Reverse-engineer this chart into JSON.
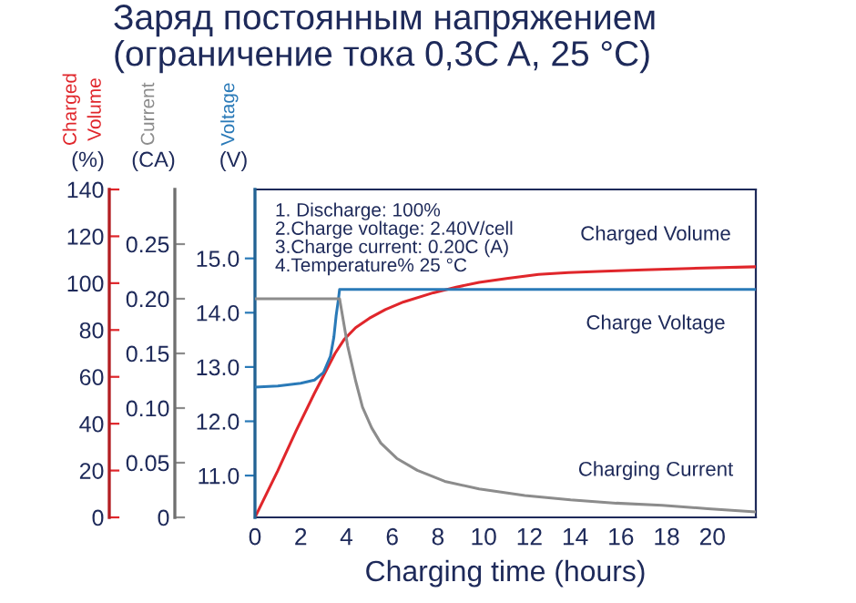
{
  "chart_data": {
    "type": "line",
    "title": "Заряд постоянным напряжением",
    "subtitle": "(ограничение тока 0,3C A, 25 °C)",
    "xlabel": "Charging time (hours)",
    "ylabel": "Charged Volume (%)",
    "y2label": "Current (CA)",
    "y3label": "Voltage (V)",
    "annotations": [
      "1. Discharge: 100%",
      "2.Charge voltage: 2.40V/cell",
      "3.Charge current: 0.20C (A)",
      "4.Temperature% 25 °C"
    ],
    "xlim": [
      0,
      21.9
    ],
    "xticks": [
      0,
      2,
      4,
      6,
      8,
      10,
      12,
      14,
      16,
      18,
      20
    ],
    "ylim": [
      0,
      140
    ],
    "yticks": [
      0,
      20,
      40,
      60,
      80,
      100,
      120,
      140
    ],
    "y2lim": [
      0,
      0.3
    ],
    "y2ticks": [
      0,
      {
        "value": 0.05,
        "label": "0.05"
      },
      {
        "value": 0.1,
        "label": "0.10"
      },
      {
        "value": 0.15,
        "label": "0.15"
      },
      {
        "value": 0.2,
        "label": "0.20"
      },
      {
        "value": 0.25,
        "label": "0.25"
      }
    ],
    "y3lim": [
      10.23,
      16.27
    ],
    "y3ticks": [
      {
        "value": 11,
        "label": "11.0"
      },
      {
        "value": 12,
        "label": "12.0"
      },
      {
        "value": 13,
        "label": "13.0"
      },
      {
        "value": 14,
        "label": "14.0"
      },
      {
        "value": 15,
        "label": "15.0"
      }
    ],
    "grid": false,
    "legend": false,
    "marker": "none",
    "line_style": "solid",
    "series": [
      {
        "name": "Charged Volume",
        "color": "#e0262b",
        "axis": "y",
        "x": [
          0,
          1,
          1.8,
          2.6,
          3.5,
          3.9,
          4.4,
          5,
          5.7,
          6.5,
          7.8,
          8.8,
          9.8,
          11,
          12.4,
          13.7,
          15,
          17,
          19,
          21.9
        ],
        "values": [
          0,
          20,
          37,
          53,
          70,
          76,
          81,
          85,
          88.7,
          92,
          95.9,
          98.3,
          100.3,
          102,
          103.7,
          104.5,
          105,
          105.7,
          106.3,
          107
        ]
      },
      {
        "name": "Charge Voltage",
        "color": "#2a7ab8",
        "axis": "y3",
        "x": [
          0,
          1,
          2,
          2.6,
          3,
          3.3,
          3.45,
          3.55,
          3.65,
          3.7,
          21.9
        ],
        "values": [
          12.63,
          12.65,
          12.7,
          12.76,
          12.9,
          13.2,
          13.55,
          13.95,
          14.25,
          14.43,
          14.43
        ]
      },
      {
        "name": "Charging Current",
        "color": "#8c8c8c",
        "axis": "y2",
        "x": [
          0,
          3.7,
          4.05,
          4.4,
          4.7,
          5.1,
          5.5,
          6.2,
          7.1,
          8.3,
          9.8,
          11.8,
          13.8,
          15.8,
          17.8,
          19.8,
          21.9
        ],
        "values": [
          0.2,
          0.2,
          0.157,
          0.125,
          0.101,
          0.082,
          0.068,
          0.054,
          0.043,
          0.033,
          0.026,
          0.02,
          0.016,
          0.013,
          0.011,
          0.008,
          0.005
        ]
      }
    ]
  }
}
